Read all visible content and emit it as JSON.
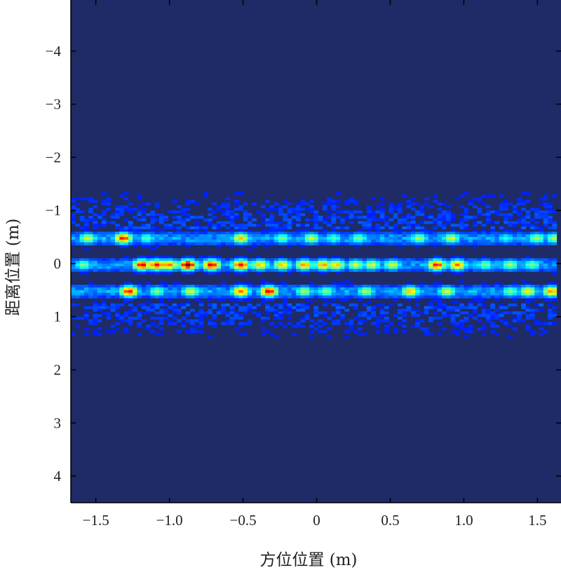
{
  "chart_data": {
    "type": "heatmap",
    "title": "",
    "xlabel": "方位位置 (m)",
    "ylabel": "距离位置 (m)",
    "xlim": [
      -1.67,
      1.66
    ],
    "ylim": [
      -4.96,
      4.5
    ],
    "y_reversed": true,
    "grid": false,
    "colormap": "jet",
    "background_color": "#1e2b66",
    "x_ticks": [
      {
        "v": -1.5,
        "label": "−1.5"
      },
      {
        "v": -1.0,
        "label": "−1.0"
      },
      {
        "v": -0.5,
        "label": "−0.5"
      },
      {
        "v": 0,
        "label": "0"
      },
      {
        "v": 0.5,
        "label": "0.5"
      },
      {
        "v": 1.0,
        "label": "1.0"
      },
      {
        "v": 1.5,
        "label": "1.5"
      }
    ],
    "y_ticks": [
      {
        "v": -4,
        "label": "−4"
      },
      {
        "v": -3,
        "label": "−3"
      },
      {
        "v": -2,
        "label": "−2"
      },
      {
        "v": -1,
        "label": "−1"
      },
      {
        "v": 0,
        "label": "0"
      },
      {
        "v": 1,
        "label": "1"
      },
      {
        "v": 2,
        "label": "2"
      },
      {
        "v": 3,
        "label": "3"
      },
      {
        "v": 4,
        "label": "4"
      }
    ],
    "peaks": [
      {
        "x": -1.57,
        "y": -0.5,
        "v": 0.55
      },
      {
        "x": -1.33,
        "y": -0.5,
        "v": 0.85
      },
      {
        "x": -1.17,
        "y": -0.5,
        "v": 0.4
      },
      {
        "x": -0.53,
        "y": -0.5,
        "v": 0.65
      },
      {
        "x": -0.25,
        "y": -0.5,
        "v": 0.45
      },
      {
        "x": -0.05,
        "y": -0.5,
        "v": 0.55
      },
      {
        "x": 0.1,
        "y": -0.5,
        "v": 0.4
      },
      {
        "x": 0.27,
        "y": -0.5,
        "v": 0.45
      },
      {
        "x": 0.68,
        "y": -0.5,
        "v": 0.5
      },
      {
        "x": 0.9,
        "y": -0.5,
        "v": 0.55
      },
      {
        "x": 1.27,
        "y": -0.5,
        "v": 0.35
      },
      {
        "x": 1.48,
        "y": -0.5,
        "v": 0.5
      },
      {
        "x": 1.6,
        "y": -0.5,
        "v": 0.5
      },
      {
        "x": -1.6,
        "y": 0,
        "v": 0.45
      },
      {
        "x": -1.2,
        "y": 0,
        "v": 0.9
      },
      {
        "x": -1.1,
        "y": 0,
        "v": 0.85
      },
      {
        "x": -1.02,
        "y": 0,
        "v": 0.75
      },
      {
        "x": -0.89,
        "y": 0,
        "v": 1.0
      },
      {
        "x": -0.73,
        "y": 0,
        "v": 0.9
      },
      {
        "x": -0.53,
        "y": 0,
        "v": 0.85
      },
      {
        "x": -0.4,
        "y": 0,
        "v": 0.65
      },
      {
        "x": -0.25,
        "y": 0,
        "v": 0.65
      },
      {
        "x": -0.1,
        "y": 0,
        "v": 0.7
      },
      {
        "x": 0.03,
        "y": 0,
        "v": 0.7
      },
      {
        "x": 0.12,
        "y": 0,
        "v": 0.65
      },
      {
        "x": 0.25,
        "y": 0,
        "v": 0.55
      },
      {
        "x": 0.36,
        "y": 0,
        "v": 0.55
      },
      {
        "x": 0.5,
        "y": 0,
        "v": 0.55
      },
      {
        "x": 0.8,
        "y": 0,
        "v": 0.85
      },
      {
        "x": 0.94,
        "y": 0,
        "v": 0.75
      },
      {
        "x": 1.13,
        "y": 0,
        "v": 0.45
      },
      {
        "x": 1.3,
        "y": 0,
        "v": 0.5
      },
      {
        "x": 1.45,
        "y": 0,
        "v": 0.45
      },
      {
        "x": -1.29,
        "y": 0.5,
        "v": 0.85
      },
      {
        "x": -1.1,
        "y": 0.5,
        "v": 0.45
      },
      {
        "x": -0.87,
        "y": 0.5,
        "v": 0.55
      },
      {
        "x": -0.53,
        "y": 0.5,
        "v": 0.75
      },
      {
        "x": -0.34,
        "y": 0.5,
        "v": 0.9
      },
      {
        "x": -0.1,
        "y": 0.5,
        "v": 0.5
      },
      {
        "x": 0.05,
        "y": 0.5,
        "v": 0.45
      },
      {
        "x": 0.32,
        "y": 0.5,
        "v": 0.5
      },
      {
        "x": 0.62,
        "y": 0.5,
        "v": 0.65
      },
      {
        "x": 0.87,
        "y": 0.5,
        "v": 0.55
      },
      {
        "x": 1.3,
        "y": 0.5,
        "v": 0.45
      },
      {
        "x": 1.42,
        "y": 0.5,
        "v": 0.6
      },
      {
        "x": 1.58,
        "y": 0.5,
        "v": 0.7
      }
    ]
  }
}
